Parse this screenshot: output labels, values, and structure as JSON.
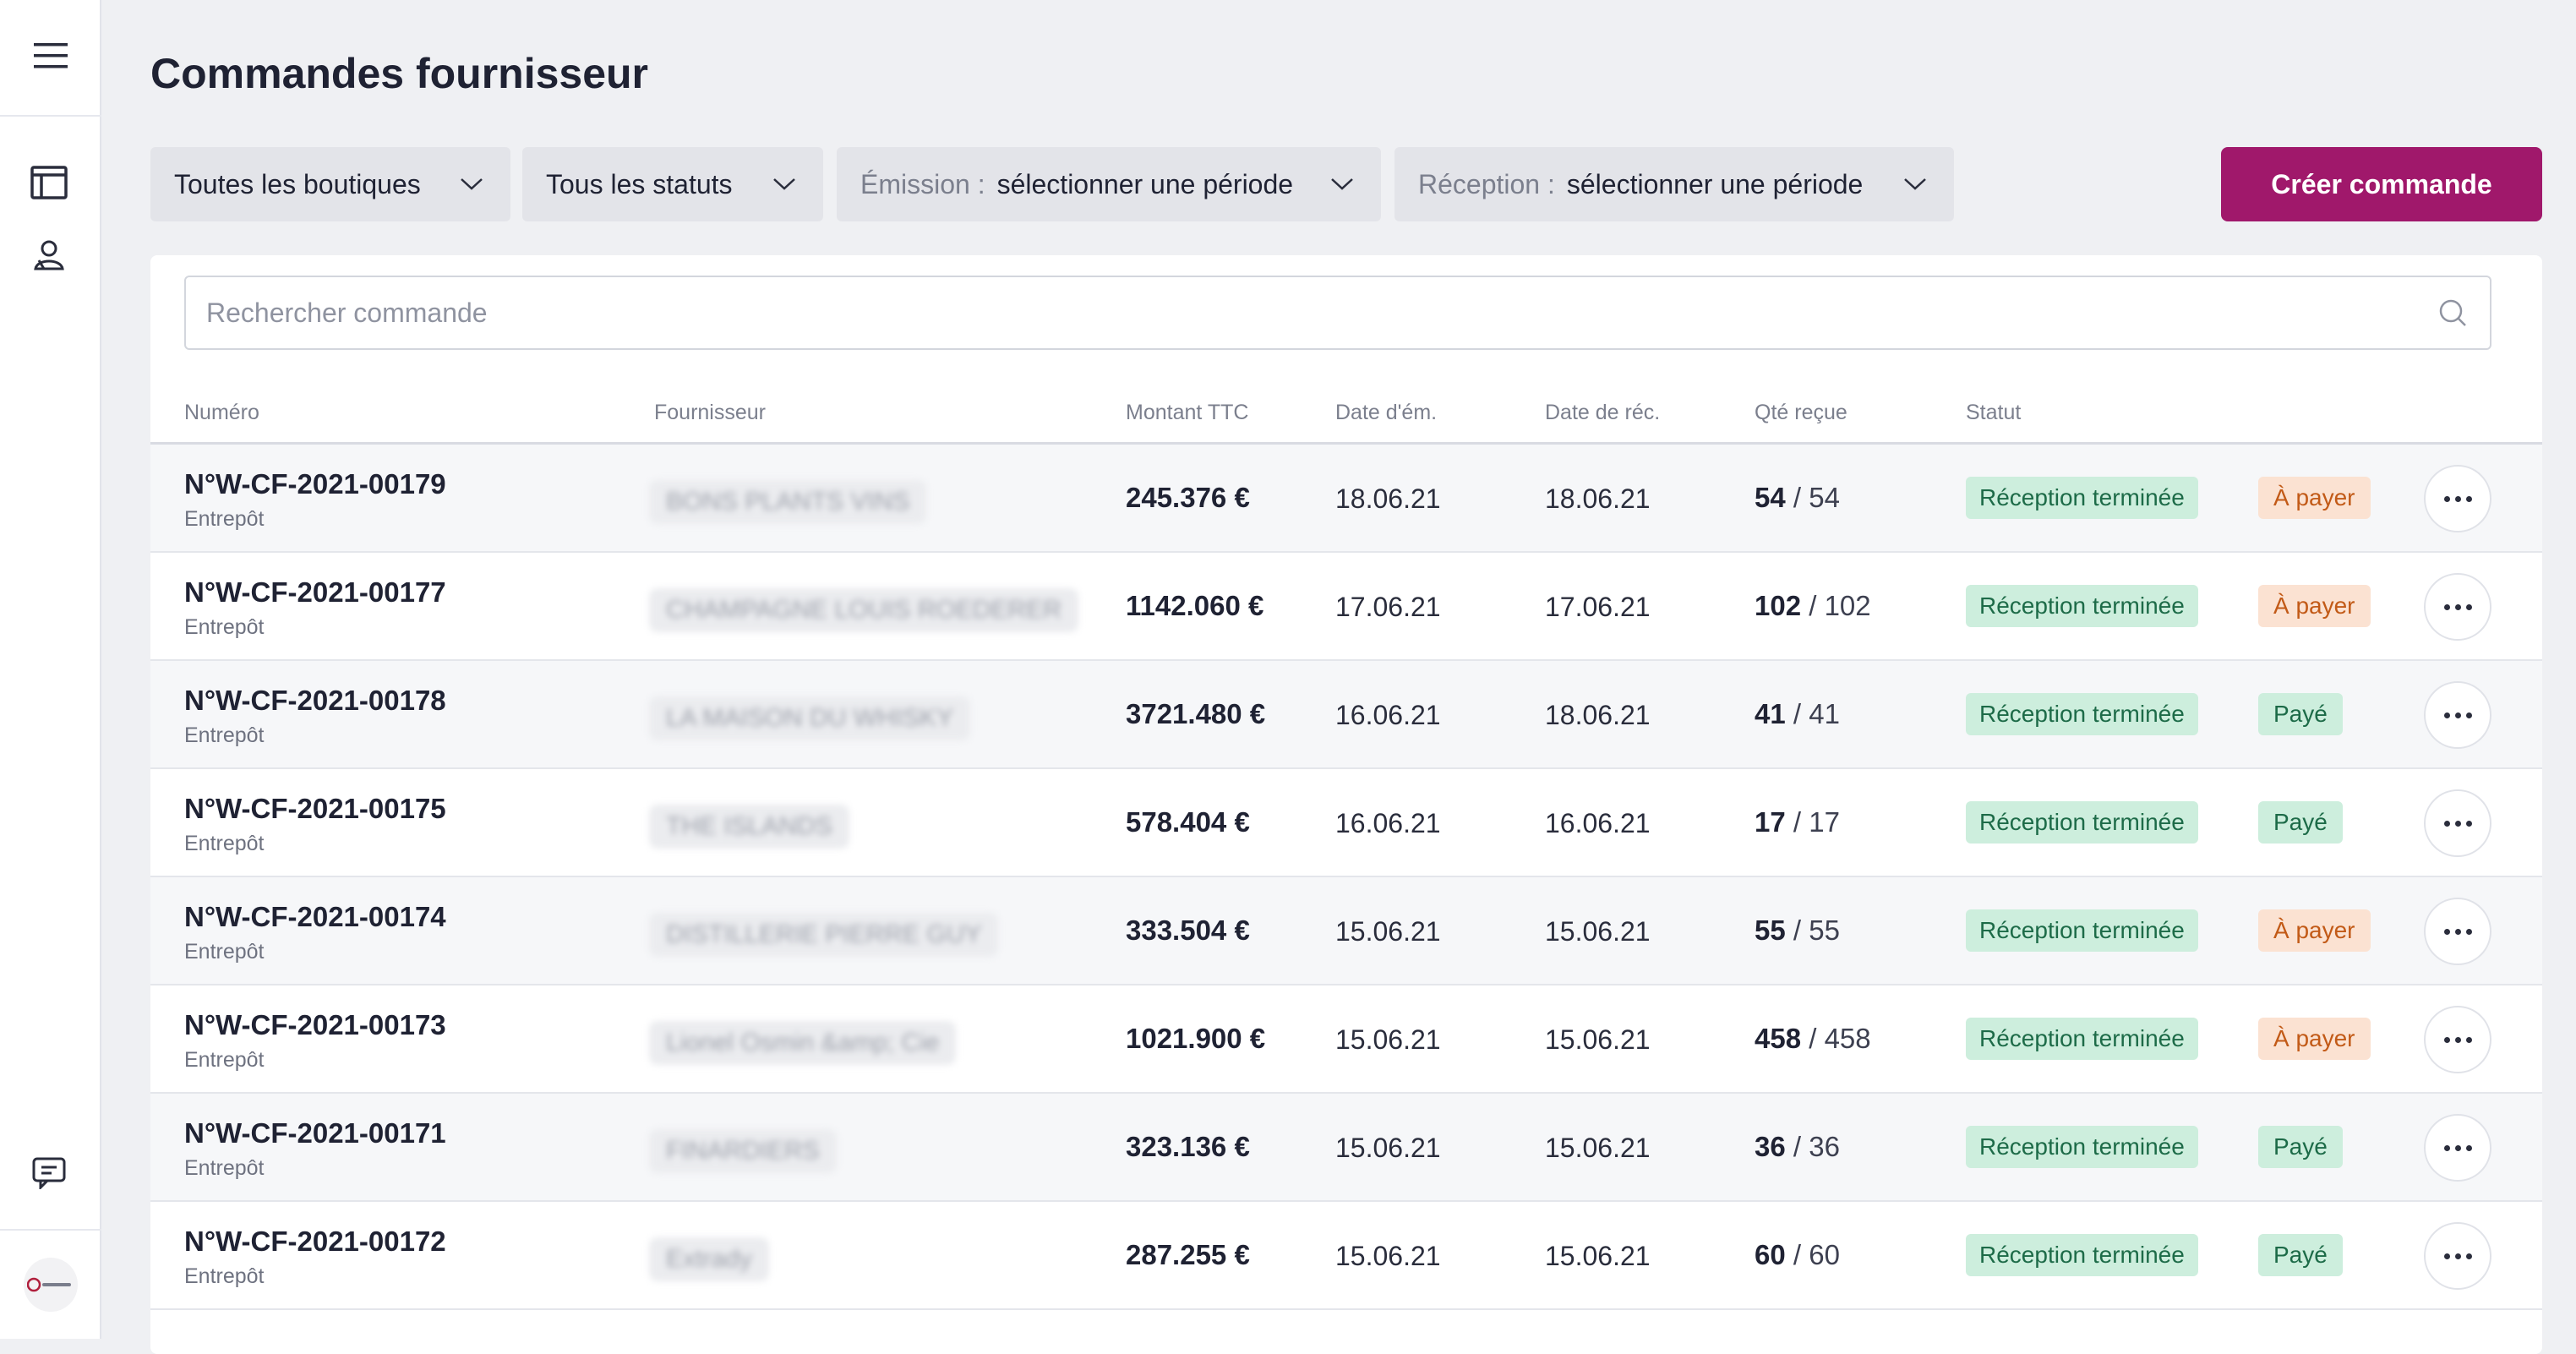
{
  "page": {
    "title": "Commandes fournisseur"
  },
  "filters": {
    "shops": "Toutes les boutiques",
    "statuses": "Tous les statuts",
    "emission_label": "Émission :",
    "emission_value": "sélectionner une période",
    "reception_label": "Réception :",
    "reception_value": "sélectionner une période"
  },
  "create_button": "Créer commande",
  "search": {
    "placeholder": "Rechercher commande"
  },
  "columns": [
    "Numéro",
    "Fournisseur",
    "Montant TTC",
    "Date d'ém.",
    "Date de réc.",
    "Qté reçue",
    "Statut"
  ],
  "rows": [
    {
      "number": "N°W-CF-2021-00179",
      "location": "Entrepôt",
      "supplier": "BONS PLANTS VINS",
      "amount": "245.376 €",
      "date_emission": "18.06.21",
      "date_reception": "18.06.21",
      "qty_received": "54",
      "qty_total": "/ 54",
      "status": "Réception terminée",
      "payment": "À payer"
    },
    {
      "number": "N°W-CF-2021-00177",
      "location": "Entrepôt",
      "supplier": "CHAMPAGNE LOUIS ROEDERER",
      "amount": "1142.060 €",
      "date_emission": "17.06.21",
      "date_reception": "17.06.21",
      "qty_received": "102",
      "qty_total": "/ 102",
      "status": "Réception terminée",
      "payment": "À payer"
    },
    {
      "number": "N°W-CF-2021-00178",
      "location": "Entrepôt",
      "supplier": "LA MAISON DU WHISKY",
      "amount": "3721.480 €",
      "date_emission": "16.06.21",
      "date_reception": "18.06.21",
      "qty_received": "41",
      "qty_total": "/ 41",
      "status": "Réception terminée",
      "payment": "Payé"
    },
    {
      "number": "N°W-CF-2021-00175",
      "location": "Entrepôt",
      "supplier": "THE ISLANDS",
      "amount": "578.404 €",
      "date_emission": "16.06.21",
      "date_reception": "16.06.21",
      "qty_received": "17",
      "qty_total": "/ 17",
      "status": "Réception terminée",
      "payment": "Payé"
    },
    {
      "number": "N°W-CF-2021-00174",
      "location": "Entrepôt",
      "supplier": "DISTILLERIE PIERRE GUY",
      "amount": "333.504 €",
      "date_emission": "15.06.21",
      "date_reception": "15.06.21",
      "qty_received": "55",
      "qty_total": "/ 55",
      "status": "Réception terminée",
      "payment": "À payer"
    },
    {
      "number": "N°W-CF-2021-00173",
      "location": "Entrepôt",
      "supplier": "Lionel Osmin &amp; Cie",
      "amount": "1021.900 €",
      "date_emission": "15.06.21",
      "date_reception": "15.06.21",
      "qty_received": "458",
      "qty_total": "/ 458",
      "status": "Réception terminée",
      "payment": "À payer"
    },
    {
      "number": "N°W-CF-2021-00171",
      "location": "Entrepôt",
      "supplier": "FINARDIERS",
      "amount": "323.136 €",
      "date_emission": "15.06.21",
      "date_reception": "15.06.21",
      "qty_received": "36",
      "qty_total": "/ 36",
      "status": "Réception terminée",
      "payment": "Payé"
    },
    {
      "number": "N°W-CF-2021-00172",
      "location": "Entrepôt",
      "supplier": "Extrady",
      "amount": "287.255 €",
      "date_emission": "15.06.21",
      "date_reception": "15.06.21",
      "qty_received": "60",
      "qty_total": "/ 60",
      "status": "Réception terminée",
      "payment": "Payé"
    }
  ],
  "sidebar": {
    "icons": [
      "menu-icon",
      "catalog-icon",
      "suppliers-icon",
      "chat-icon"
    ]
  },
  "colors": {
    "accent": "#a0186b",
    "success_bg": "#cdeedd",
    "warning_bg": "#fbe2d2"
  }
}
